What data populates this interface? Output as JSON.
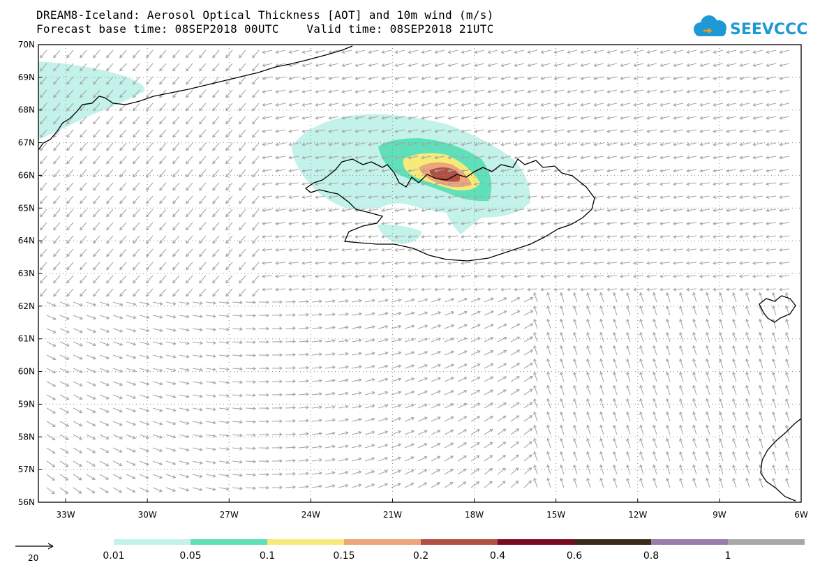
{
  "header": {
    "title_line1": "DREAM8-Iceland: Aerosol Optical Thickness [AOT] and 10m wind (m/s)",
    "title_line2": "Forecast base time: 08SEP2018 00UTC    Valid time: 08SEP2018 21UTC"
  },
  "logo": {
    "text": "SEEVCCC",
    "color": "#1d9ad6"
  },
  "axes": {
    "lat_labels": [
      "70N",
      "69N",
      "68N",
      "67N",
      "66N",
      "65N",
      "64N",
      "63N",
      "62N",
      "61N",
      "60N",
      "59N",
      "58N",
      "57N",
      "56N"
    ],
    "lon_labels": [
      "33W",
      "30W",
      "27W",
      "24W",
      "21W",
      "18W",
      "15W",
      "12W",
      "9W",
      "6W"
    ],
    "lat_range": [
      56,
      70
    ],
    "lon_range": [
      -34,
      -6
    ]
  },
  "wind_reference": {
    "value": "20",
    "arrow_color": "#000000"
  },
  "colorbar": {
    "colors": [
      "#c2f2ea",
      "#5ee1b8",
      "#f6eb78",
      "#eda57a",
      "#b24f43",
      "#7a0a22",
      "#3a2a18",
      "#9a7ba9",
      "#a8a8a8"
    ],
    "labels": [
      "0.01",
      "0.05",
      "0.1",
      "0.15",
      "0.2",
      "0.4",
      "0.6",
      "0.8",
      "1"
    ]
  },
  "colors": {
    "wind_arrow": "#a6a6a6",
    "coastline": "#000000",
    "grid": "#888888"
  },
  "aot_field": [
    {
      "level": "0.01",
      "color": "#c2f2ea"
    },
    {
      "level": "0.05",
      "color": "#5ee1b8"
    },
    {
      "level": "0.1",
      "color": "#f6eb78"
    },
    {
      "level": "0.15",
      "color": "#eda57a"
    },
    {
      "level": "0.2",
      "color": "#b24f43"
    }
  ]
}
